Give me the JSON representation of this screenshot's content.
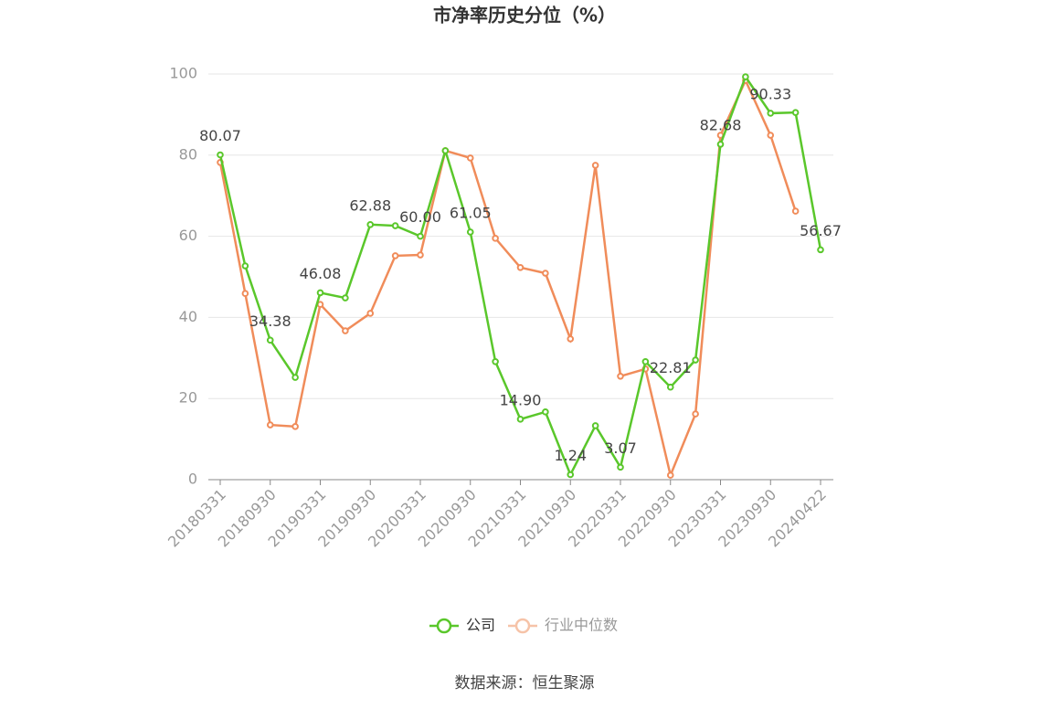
{
  "chart_data": {
    "type": "line",
    "title": "市净率历史分位（%）",
    "categories": [
      "20180331",
      null,
      "20180930",
      null,
      "20190331",
      null,
      "20190930",
      null,
      "20200331",
      null,
      "20200930",
      null,
      "20210331",
      null,
      "20210930",
      null,
      "20220331",
      null,
      "20220930",
      null,
      "20230331",
      null,
      "20230930",
      null,
      "20240422"
    ],
    "series": [
      {
        "name": "公司",
        "color": "#5ac72b",
        "values": [
          80.07,
          52.7,
          34.38,
          25.2,
          46.08,
          44.8,
          62.88,
          62.6,
          60.0,
          81.1,
          61.05,
          29.1,
          14.9,
          16.7,
          1.24,
          13.3,
          3.07,
          29.1,
          22.81,
          29.5,
          82.68,
          99.3,
          90.33,
          90.5,
          56.67
        ],
        "value_labels": [
          "80.07",
          null,
          "34.38",
          null,
          "46.08",
          null,
          "62.88",
          null,
          "60.00",
          null,
          "61.05",
          null,
          "14.90",
          null,
          "1.24",
          null,
          "3.07",
          null,
          "22.81",
          null,
          "82.68",
          null,
          "90.33",
          null,
          "56.67"
        ]
      },
      {
        "name": "行业中位数",
        "color": "#f08c5a",
        "values": [
          78.2,
          45.9,
          13.5,
          13.1,
          43.2,
          36.7,
          41.0,
          55.2,
          55.4,
          81.1,
          79.3,
          59.5,
          52.3,
          50.9,
          34.7,
          77.5,
          25.5,
          27.3,
          1.1,
          16.2,
          84.9,
          98.4,
          84.9,
          66.2,
          null
        ]
      }
    ],
    "ylim": [
      0,
      100
    ],
    "yticks": [
      0,
      20,
      40,
      60,
      80,
      100
    ],
    "grid": true,
    "source": "数据来源：恒生聚源"
  }
}
